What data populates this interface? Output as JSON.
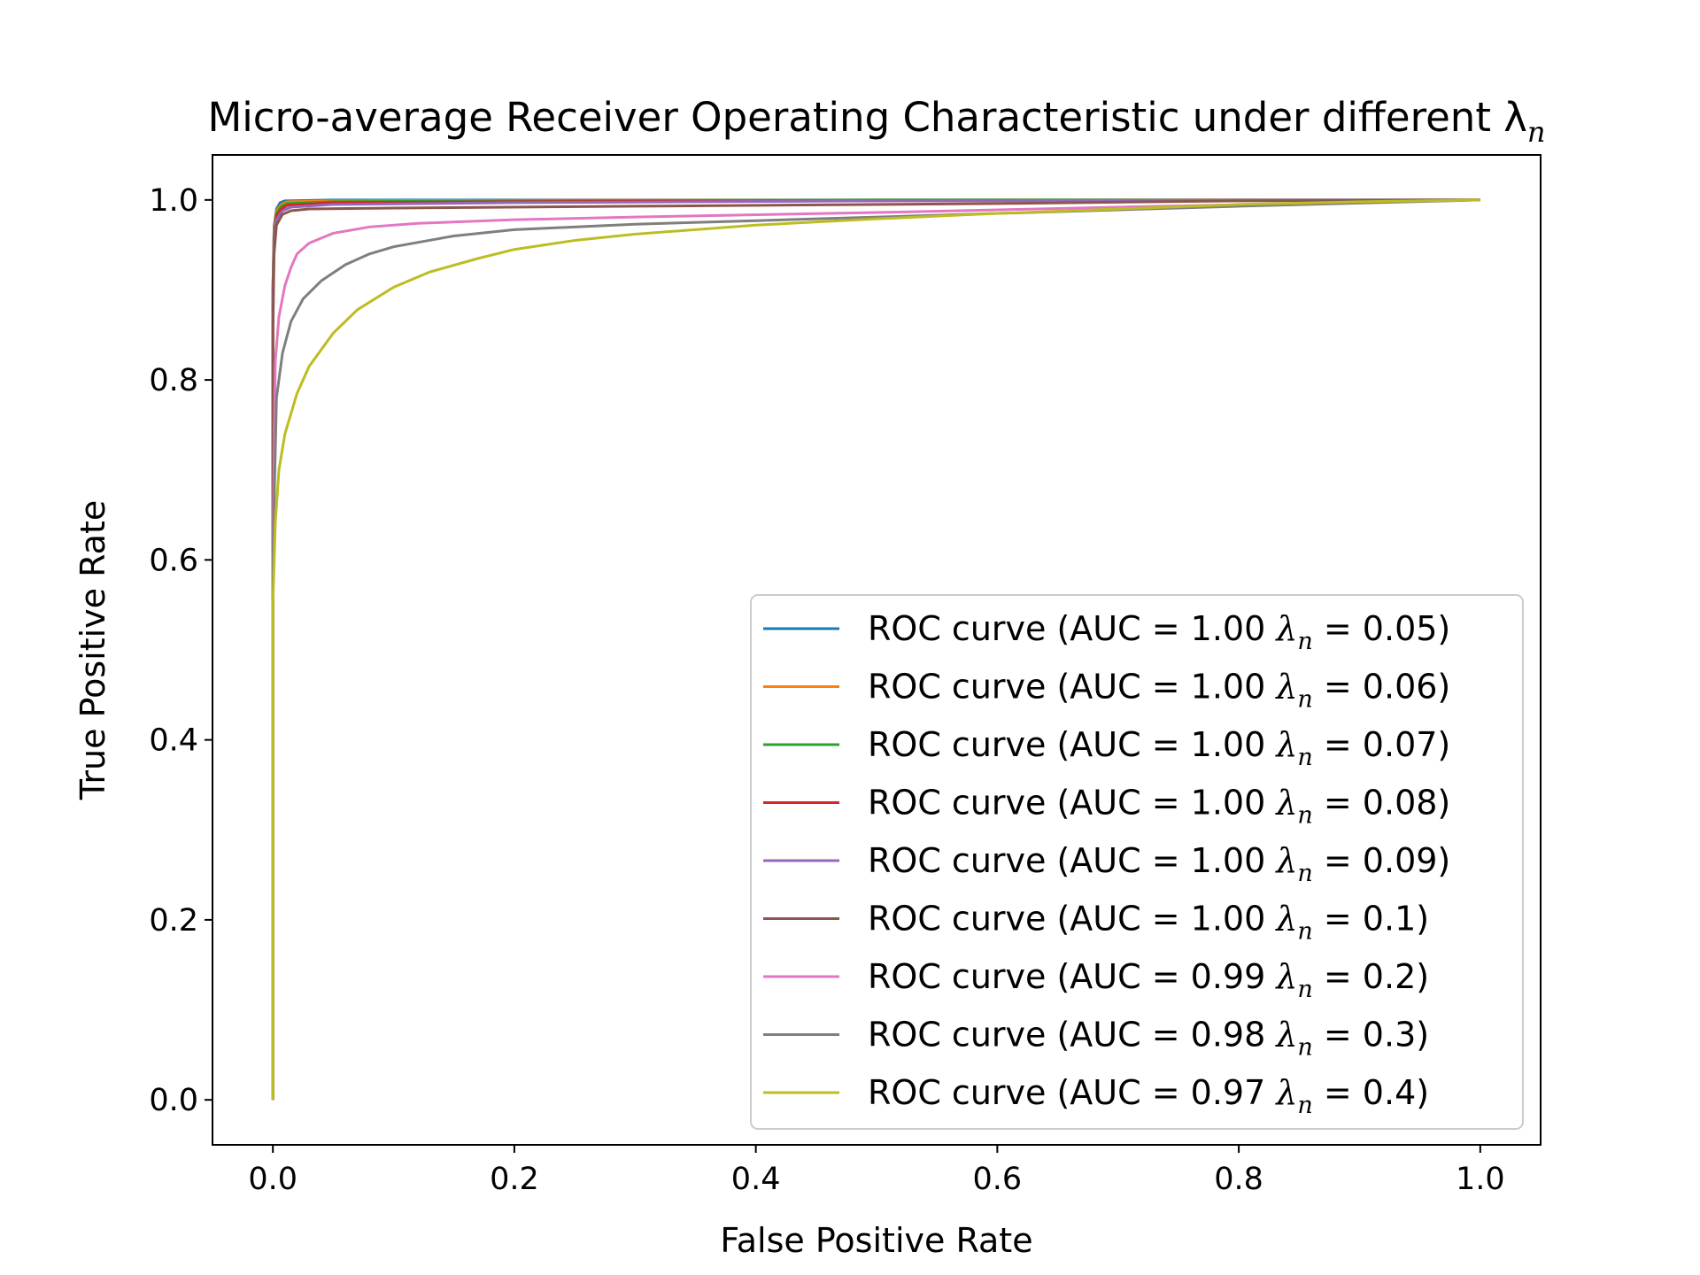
{
  "chart_data": {
    "type": "line",
    "title": "Micro-average Receiver Operating Characteristic under different λ",
    "title_subscript": "n",
    "xlabel": "False Positive Rate",
    "ylabel": "True Positive Rate",
    "xlim": [
      -0.05,
      1.05
    ],
    "ylim": [
      -0.05,
      1.05
    ],
    "xticks": [
      0.0,
      0.2,
      0.4,
      0.6,
      0.8,
      1.0
    ],
    "yticks": [
      0.0,
      0.2,
      0.4,
      0.6,
      0.8,
      1.0
    ],
    "grid": false,
    "legend_position": "lower-right",
    "series": [
      {
        "name": "ROC curve (AUC = 1.00 λn = 0.05)",
        "label_prefix": "ROC curve (AUC = 1.00 ",
        "label_suffix": " = 0.05)",
        "color": "#1f77b4",
        "x": [
          0,
          0,
          0.001,
          0.003,
          0.006,
          0.01,
          0.05,
          0.2,
          0.5,
          1.0
        ],
        "y": [
          0,
          0.9,
          0.97,
          0.99,
          0.997,
          0.999,
          1.0,
          1.0,
          1.0,
          1.0
        ]
      },
      {
        "name": "ROC curve (AUC = 1.00 λn = 0.06)",
        "label_prefix": "ROC curve (AUC = 1.00 ",
        "label_suffix": " = 0.06)",
        "color": "#ff7f0e",
        "x": [
          0,
          0,
          0.001,
          0.003,
          0.007,
          0.012,
          0.05,
          0.2,
          0.5,
          1.0
        ],
        "y": [
          0,
          0.9,
          0.965,
          0.988,
          0.995,
          0.998,
          0.999,
          0.9995,
          1.0,
          1.0
        ]
      },
      {
        "name": "ROC curve (AUC = 1.00 λn = 0.07)",
        "label_prefix": "ROC curve (AUC = 1.00 ",
        "label_suffix": " = 0.07)",
        "color": "#2ca02c",
        "x": [
          0,
          0,
          0.001,
          0.003,
          0.007,
          0.012,
          0.05,
          0.2,
          0.5,
          1.0
        ],
        "y": [
          0,
          0.9,
          0.96,
          0.985,
          0.993,
          0.996,
          0.998,
          0.999,
          1.0,
          1.0
        ]
      },
      {
        "name": "ROC curve (AUC = 1.00 λn = 0.08)",
        "label_prefix": "ROC curve (AUC = 1.00 ",
        "label_suffix": " = 0.08)",
        "color": "#d62728",
        "x": [
          0,
          0,
          0.001,
          0.003,
          0.007,
          0.012,
          0.05,
          0.2,
          0.5,
          1.0
        ],
        "y": [
          0,
          0.88,
          0.955,
          0.982,
          0.99,
          0.994,
          0.997,
          0.998,
          0.999,
          1.0
        ]
      },
      {
        "name": "ROC curve (AUC = 1.00 λn = 0.09)",
        "label_prefix": "ROC curve (AUC = 1.00 ",
        "label_suffix": " = 0.09)",
        "color": "#9467bd",
        "x": [
          0,
          0,
          0.001,
          0.003,
          0.008,
          0.015,
          0.05,
          0.2,
          0.5,
          1.0
        ],
        "y": [
          0,
          0.87,
          0.95,
          0.978,
          0.988,
          0.992,
          0.995,
          0.997,
          0.999,
          1.0
        ]
      },
      {
        "name": "ROC curve (AUC = 1.00 λn = 0.1)",
        "label_prefix": "ROC curve (AUC = 1.00 ",
        "label_suffix": " = 0.1)",
        "color": "#8c564b",
        "x": [
          0,
          0,
          0.001,
          0.003,
          0.008,
          0.015,
          0.03,
          0.1,
          0.3,
          0.6,
          0.8,
          1.0
        ],
        "y": [
          0,
          0.85,
          0.94,
          0.972,
          0.984,
          0.988,
          0.99,
          0.991,
          0.993,
          0.996,
          0.999,
          1.0
        ]
      },
      {
        "name": "ROC curve (AUC = 0.99 λn = 0.2)",
        "label_prefix": "ROC curve (AUC = 0.99 ",
        "label_suffix": " = 0.2)",
        "color": "#e377c2",
        "x": [
          0,
          0,
          0.002,
          0.005,
          0.01,
          0.015,
          0.02,
          0.03,
          0.05,
          0.08,
          0.12,
          0.2,
          0.3,
          0.5,
          0.7,
          1.0
        ],
        "y": [
          0,
          0.6,
          0.82,
          0.87,
          0.905,
          0.925,
          0.94,
          0.952,
          0.963,
          0.97,
          0.974,
          0.978,
          0.981,
          0.986,
          0.992,
          1.0
        ]
      },
      {
        "name": "ROC curve (AUC = 0.98 λn = 0.3)",
        "label_prefix": "ROC curve (AUC = 0.98 ",
        "label_suffix": " = 0.3)",
        "color": "#7f7f7f",
        "x": [
          0,
          0,
          0.003,
          0.008,
          0.015,
          0.025,
          0.04,
          0.06,
          0.08,
          0.1,
          0.15,
          0.2,
          0.3,
          0.4,
          0.6,
          0.8,
          1.0
        ],
        "y": [
          0,
          0.6,
          0.78,
          0.83,
          0.865,
          0.89,
          0.91,
          0.928,
          0.94,
          0.948,
          0.96,
          0.967,
          0.973,
          0.977,
          0.985,
          0.993,
          1.0
        ]
      },
      {
        "name": "ROC curve (AUC = 0.97 λn = 0.4)",
        "label_prefix": "ROC curve (AUC = 0.97 ",
        "label_suffix": " = 0.4)",
        "color": "#bcbd22",
        "x": [
          0,
          0,
          0.002,
          0.005,
          0.01,
          0.02,
          0.03,
          0.05,
          0.07,
          0.1,
          0.13,
          0.17,
          0.2,
          0.25,
          0.3,
          0.4,
          0.5,
          0.6,
          0.7,
          0.8,
          0.9,
          1.0
        ],
        "y": [
          0,
          0.55,
          0.64,
          0.7,
          0.74,
          0.785,
          0.815,
          0.852,
          0.878,
          0.903,
          0.92,
          0.935,
          0.945,
          0.955,
          0.962,
          0.972,
          0.979,
          0.985,
          0.99,
          0.995,
          0.998,
          1.0
        ]
      }
    ]
  }
}
